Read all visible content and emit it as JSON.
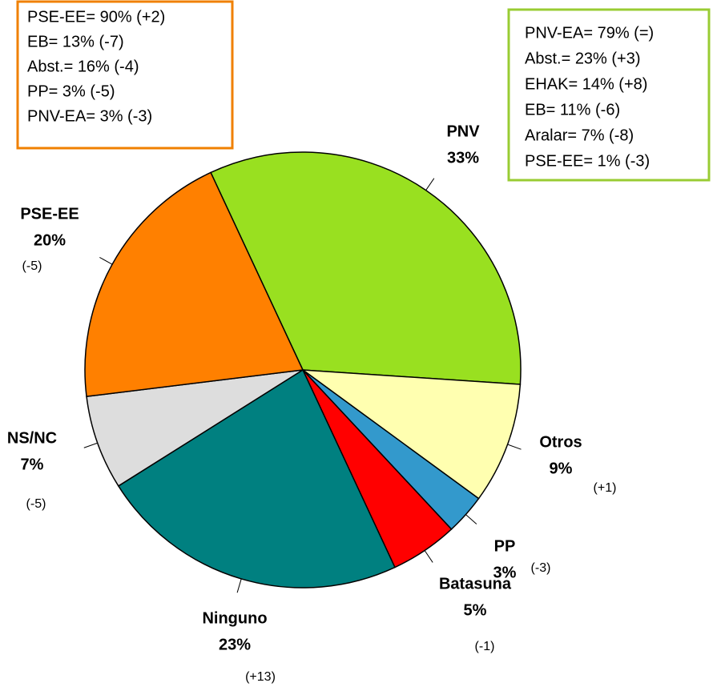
{
  "chart_data": {
    "type": "pie",
    "categories": [
      "PNV",
      "Otros",
      "PP",
      "Batasuna",
      "Ninguno",
      "NS/NC",
      "PSE-EE"
    ],
    "values": [
      33,
      9,
      3,
      5,
      23,
      7,
      20
    ],
    "value_labels": [
      "33%",
      "9%",
      "3%",
      "5%",
      "23%",
      "7%",
      "20%"
    ],
    "changes": [
      null,
      "(+1)",
      "(-3)",
      "(-1)",
      "(+13)",
      "(-5)",
      "(-5)"
    ],
    "colors": [
      "#99e020",
      "#ffffb0",
      "#3399cc",
      "#ff0000",
      "#008080",
      "#dddddd",
      "#ff8000"
    ],
    "annotations": [
      {
        "color": "#f08000",
        "lines": [
          "PSE-EE= 90% (+2)",
          "EB= 13% (-7)",
          "Abst.= 16% (-4)",
          "PP= 3% (-5)",
          "PNV-EA= 3% (-3)"
        ]
      },
      {
        "color": "#99cc33",
        "lines": [
          "PNV-EA= 79% (=)",
          "Abst.= 23% (+3)",
          "EHAK= 14% (+8)",
          "EB= 11% (-6)",
          "Aralar= 7% (-8)",
          "PSE-EE= 1% (-3)"
        ]
      }
    ]
  }
}
